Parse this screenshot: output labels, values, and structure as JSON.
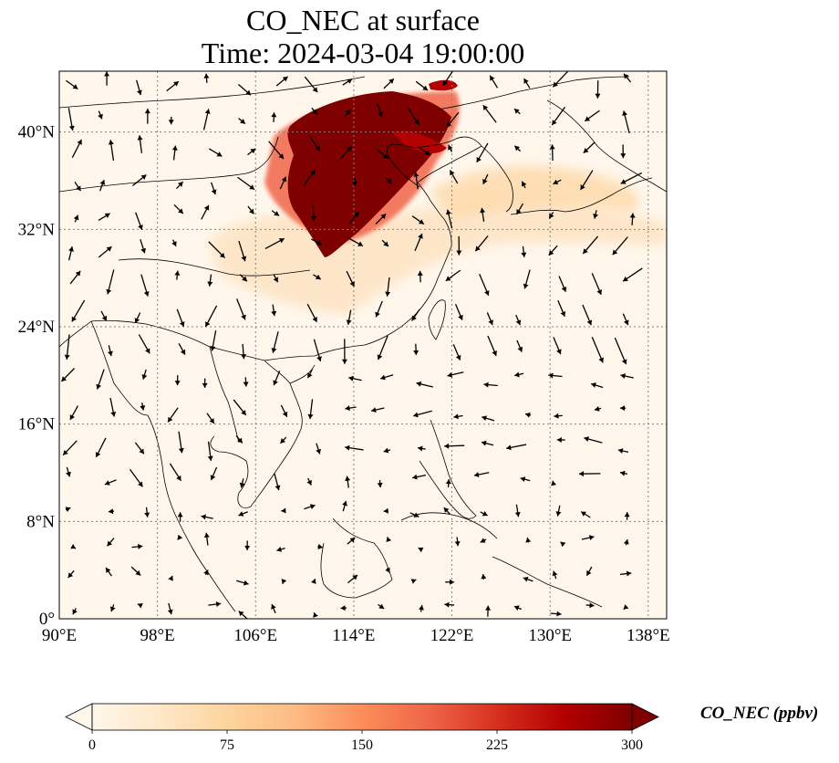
{
  "map": {
    "title_line1": "CO_NEC at surface",
    "title_line2": "Time: 2024-03-04 19:00:00",
    "variable": "CO_NEC",
    "level": "surface",
    "time": "2024-03-04 19:00:00",
    "extent": {
      "lon_min": 90,
      "lon_max": 139.5,
      "lat_min": 0,
      "lat_max": 45
    },
    "lon_ticks": [
      {
        "value": 90,
        "label": "90°E"
      },
      {
        "value": 98,
        "label": "98°E"
      },
      {
        "value": 106,
        "label": "106°E"
      },
      {
        "value": 114,
        "label": "114°E"
      },
      {
        "value": 122,
        "label": "122°E"
      },
      {
        "value": 130,
        "label": "130°E"
      },
      {
        "value": 138,
        "label": "138°E"
      }
    ],
    "lat_ticks": [
      {
        "value": 0,
        "label": "0°"
      },
      {
        "value": 8,
        "label": "8°N"
      },
      {
        "value": 16,
        "label": "16°N"
      },
      {
        "value": 24,
        "label": "24°N"
      },
      {
        "value": 32,
        "label": "32°N"
      },
      {
        "value": 40,
        "label": "40°N"
      }
    ],
    "gridlines": true,
    "colormap": "OrRd",
    "colors": {
      "background": "#fff7ec",
      "low": "#fdd49e",
      "mid": "#fc8d59",
      "high": "#d7301f",
      "max": "#7f0000",
      "wind_arrow": "#000000",
      "coastline": "#000000",
      "grid": "#808080"
    },
    "high_concentration_region": "North China Plain (~110°E–122°E, 30°N–42°N)"
  },
  "colorbar": {
    "label": "CO_NEC (ppbv)",
    "min": 0,
    "max": 300,
    "extend": "both",
    "ticks": [
      {
        "value": 0,
        "label": "0"
      },
      {
        "value": 75,
        "label": "75"
      },
      {
        "value": 150,
        "label": "150"
      },
      {
        "value": 225,
        "label": "225"
      },
      {
        "value": 300,
        "label": "300"
      }
    ]
  }
}
